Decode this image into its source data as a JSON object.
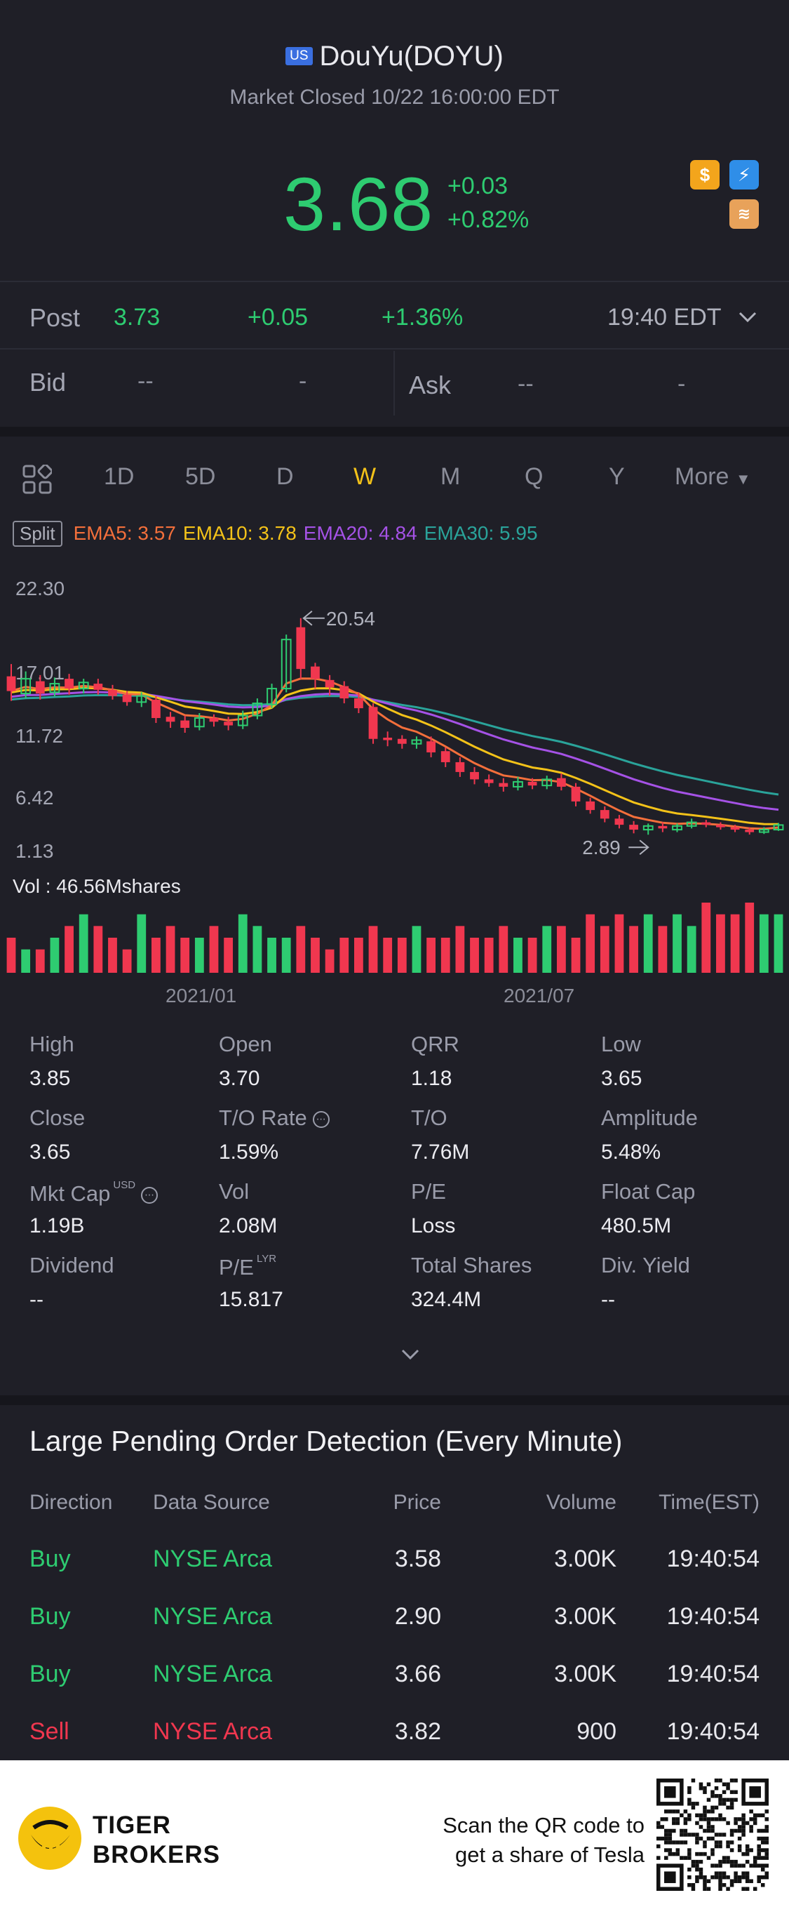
{
  "header": {
    "badge": "US",
    "title": "DouYu(DOYU)",
    "status": "Market Closed 10/22 16:00:00 EDT",
    "price": "3.68",
    "change": "+0.03",
    "change_pct": "+0.82%",
    "icons": [
      "dollar-icon",
      "flash-icon",
      "layers-icon"
    ]
  },
  "post": {
    "label": "Post",
    "price": "3.73",
    "change": "+0.05",
    "change_pct": "+1.36%",
    "time": "19:40 EDT"
  },
  "quote": {
    "bid_label": "Bid",
    "bid_price": "--",
    "bid_size": "-",
    "ask_label": "Ask",
    "ask_price": "--",
    "ask_size": "-"
  },
  "tabs": {
    "items": [
      "1D",
      "5D",
      "D",
      "W",
      "M",
      "Q",
      "Y"
    ],
    "active": "W",
    "more": "More"
  },
  "indicators": {
    "split": "Split",
    "ema5": "EMA5: 3.57",
    "ema10": "EMA10: 3.78",
    "ema20": "EMA20: 4.84",
    "ema30": "EMA30: 5.95"
  },
  "chart_data": {
    "type": "candlestick",
    "y_ticks": [
      "22.30",
      "17.01",
      "11.72",
      "6.42",
      "1.13"
    ],
    "ylim": [
      1.13,
      22.3
    ],
    "x_ticks": [
      "2021/01",
      "2021/07"
    ],
    "high_annotation": "20.54",
    "low_annotation": "2.89",
    "volume_label": "Vol  : 46.56Mshares",
    "colors": {
      "up": "#2ecc71",
      "down": "#f0374f",
      "ema5": "#f36f3b",
      "ema10": "#f3c219",
      "ema20": "#a552e6",
      "ema30": "#2aa39a"
    },
    "candles": [
      {
        "o": 15.8,
        "c": 14.6,
        "h": 16.8,
        "l": 13.8
      },
      {
        "o": 14.4,
        "c": 15.6,
        "h": 16.2,
        "l": 14.0
      },
      {
        "o": 15.4,
        "c": 14.4,
        "h": 15.9,
        "l": 13.9
      },
      {
        "o": 14.5,
        "c": 15.2,
        "h": 15.7,
        "l": 14.2
      },
      {
        "o": 15.6,
        "c": 14.8,
        "h": 16.0,
        "l": 14.3
      },
      {
        "o": 14.8,
        "c": 15.3,
        "h": 15.6,
        "l": 14.4
      },
      {
        "o": 15.2,
        "c": 14.7,
        "h": 15.6,
        "l": 14.3
      },
      {
        "o": 14.7,
        "c": 14.2,
        "h": 15.1,
        "l": 13.9
      },
      {
        "o": 14.3,
        "c": 13.7,
        "h": 14.6,
        "l": 13.4
      },
      {
        "o": 13.7,
        "c": 14.2,
        "h": 14.5,
        "l": 13.3
      },
      {
        "o": 13.9,
        "c": 12.4,
        "h": 14.2,
        "l": 12.0
      },
      {
        "o": 12.5,
        "c": 12.1,
        "h": 12.9,
        "l": 11.6
      },
      {
        "o": 12.2,
        "c": 11.6,
        "h": 12.6,
        "l": 11.2
      },
      {
        "o": 11.7,
        "c": 12.4,
        "h": 12.8,
        "l": 11.4
      },
      {
        "o": 12.4,
        "c": 12.1,
        "h": 12.7,
        "l": 11.7
      },
      {
        "o": 12.1,
        "c": 11.8,
        "h": 12.5,
        "l": 11.4
      },
      {
        "o": 11.8,
        "c": 12.6,
        "h": 13.0,
        "l": 11.5
      },
      {
        "o": 12.6,
        "c": 13.6,
        "h": 14.0,
        "l": 12.3
      },
      {
        "o": 13.5,
        "c": 14.8,
        "h": 15.2,
        "l": 13.2
      },
      {
        "o": 14.8,
        "c": 18.8,
        "h": 19.2,
        "l": 14.5
      },
      {
        "o": 19.8,
        "c": 16.4,
        "h": 20.54,
        "l": 15.6
      },
      {
        "o": 16.6,
        "c": 15.6,
        "h": 16.9,
        "l": 14.8
      },
      {
        "o": 15.5,
        "c": 14.9,
        "h": 15.9,
        "l": 14.2
      },
      {
        "o": 15.0,
        "c": 14.0,
        "h": 15.4,
        "l": 13.6
      },
      {
        "o": 14.0,
        "c": 13.2,
        "h": 14.5,
        "l": 12.8
      },
      {
        "o": 13.3,
        "c": 10.7,
        "h": 13.6,
        "l": 10.3
      },
      {
        "o": 10.8,
        "c": 10.6,
        "h": 11.3,
        "l": 10.1
      },
      {
        "o": 10.7,
        "c": 10.3,
        "h": 11.0,
        "l": 9.9
      },
      {
        "o": 10.3,
        "c": 10.6,
        "h": 10.9,
        "l": 9.9
      },
      {
        "o": 10.5,
        "c": 9.6,
        "h": 10.9,
        "l": 9.2
      },
      {
        "o": 9.7,
        "c": 8.8,
        "h": 10.0,
        "l": 8.4
      },
      {
        "o": 8.8,
        "c": 8.0,
        "h": 9.2,
        "l": 7.6
      },
      {
        "o": 8.0,
        "c": 7.4,
        "h": 8.4,
        "l": 7.0
      },
      {
        "o": 7.4,
        "c": 7.1,
        "h": 7.8,
        "l": 6.8
      },
      {
        "o": 7.1,
        "c": 6.8,
        "h": 7.5,
        "l": 6.4
      },
      {
        "o": 6.8,
        "c": 7.2,
        "h": 7.6,
        "l": 6.5
      },
      {
        "o": 7.2,
        "c": 6.9,
        "h": 7.5,
        "l": 6.6
      },
      {
        "o": 6.9,
        "c": 7.4,
        "h": 7.7,
        "l": 6.6
      },
      {
        "o": 7.5,
        "c": 6.8,
        "h": 7.9,
        "l": 6.5
      },
      {
        "o": 6.8,
        "c": 5.6,
        "h": 7.1,
        "l": 5.2
      },
      {
        "o": 5.6,
        "c": 4.9,
        "h": 5.9,
        "l": 4.6
      },
      {
        "o": 4.9,
        "c": 4.2,
        "h": 5.2,
        "l": 3.9
      },
      {
        "o": 4.2,
        "c": 3.7,
        "h": 4.5,
        "l": 3.4
      },
      {
        "o": 3.7,
        "c": 3.3,
        "h": 4.0,
        "l": 3.0
      },
      {
        "o": 3.3,
        "c": 3.6,
        "h": 3.8,
        "l": 2.89
      },
      {
        "o": 3.6,
        "c": 3.4,
        "h": 3.9,
        "l": 3.1
      },
      {
        "o": 3.3,
        "c": 3.6,
        "h": 3.8,
        "l": 3.1
      },
      {
        "o": 3.6,
        "c": 3.9,
        "h": 4.2,
        "l": 3.4
      },
      {
        "o": 3.9,
        "c": 3.7,
        "h": 4.1,
        "l": 3.5
      },
      {
        "o": 3.7,
        "c": 3.5,
        "h": 3.9,
        "l": 3.3
      },
      {
        "o": 3.5,
        "c": 3.3,
        "h": 3.7,
        "l": 3.1
      },
      {
        "o": 3.3,
        "c": 3.1,
        "h": 3.5,
        "l": 2.9
      },
      {
        "o": 3.1,
        "c": 3.3,
        "h": 3.5,
        "l": 2.95
      },
      {
        "o": 3.3,
        "c": 3.68,
        "h": 3.85,
        "l": 3.2
      }
    ],
    "volumes": [
      3,
      2,
      2,
      3,
      4,
      5,
      4,
      3,
      2,
      5,
      3,
      4,
      3,
      3,
      4,
      3,
      5,
      4,
      3,
      3,
      4,
      3,
      2,
      3,
      3,
      4,
      3,
      3,
      4,
      3,
      3,
      4,
      3,
      3,
      4,
      3,
      3,
      4,
      4,
      3,
      5,
      4,
      5,
      4,
      5,
      4,
      5,
      4,
      6,
      5,
      5,
      6,
      5,
      5
    ]
  },
  "stats": [
    {
      "label": "High",
      "value": "3.85"
    },
    {
      "label": "Open",
      "value": "3.70"
    },
    {
      "label": "QRR",
      "value": "1.18"
    },
    {
      "label": "Low",
      "value": "3.65"
    },
    {
      "label": "Close",
      "value": "3.65"
    },
    {
      "label": "T/O Rate",
      "value": "1.59%"
    },
    {
      "label": "T/O",
      "value": "7.76M"
    },
    {
      "label": "Amplitude",
      "value": "5.48%"
    },
    {
      "label": "Mkt Cap",
      "value": "1.19B",
      "sup": "USD"
    },
    {
      "label": "Vol",
      "value": "2.08M"
    },
    {
      "label": "P/E",
      "value": "Loss"
    },
    {
      "label": "Float Cap",
      "value": "480.5M"
    },
    {
      "label": "Dividend",
      "value": "--"
    },
    {
      "label": "P/E",
      "value": "15.817",
      "sup": "LYR"
    },
    {
      "label": "Total Shares",
      "value": "324.4M"
    },
    {
      "label": "Div. Yield",
      "value": "--"
    }
  ],
  "orders": {
    "title": "Large Pending Order Detection (Every Minute)",
    "headers": [
      "Direction",
      "Data Source",
      "Price",
      "Volume",
      "Time(EST)"
    ],
    "rows": [
      {
        "direction": "Buy",
        "source": "NYSE Arca",
        "price": "3.58",
        "volume": "3.00K",
        "time": "19:40:54"
      },
      {
        "direction": "Buy",
        "source": "NYSE Arca",
        "price": "2.90",
        "volume": "3.00K",
        "time": "19:40:54"
      },
      {
        "direction": "Buy",
        "source": "NYSE Arca",
        "price": "3.66",
        "volume": "3.00K",
        "time": "19:40:54"
      },
      {
        "direction": "Sell",
        "source": "NYSE Arca",
        "price": "3.82",
        "volume": "900",
        "time": "19:40:54"
      }
    ]
  },
  "footer": {
    "brand_line1": "TIGER",
    "brand_line2": "BROKERS",
    "scan_line1": "Scan the QR code to",
    "scan_line2": "get a share of Tesla"
  }
}
